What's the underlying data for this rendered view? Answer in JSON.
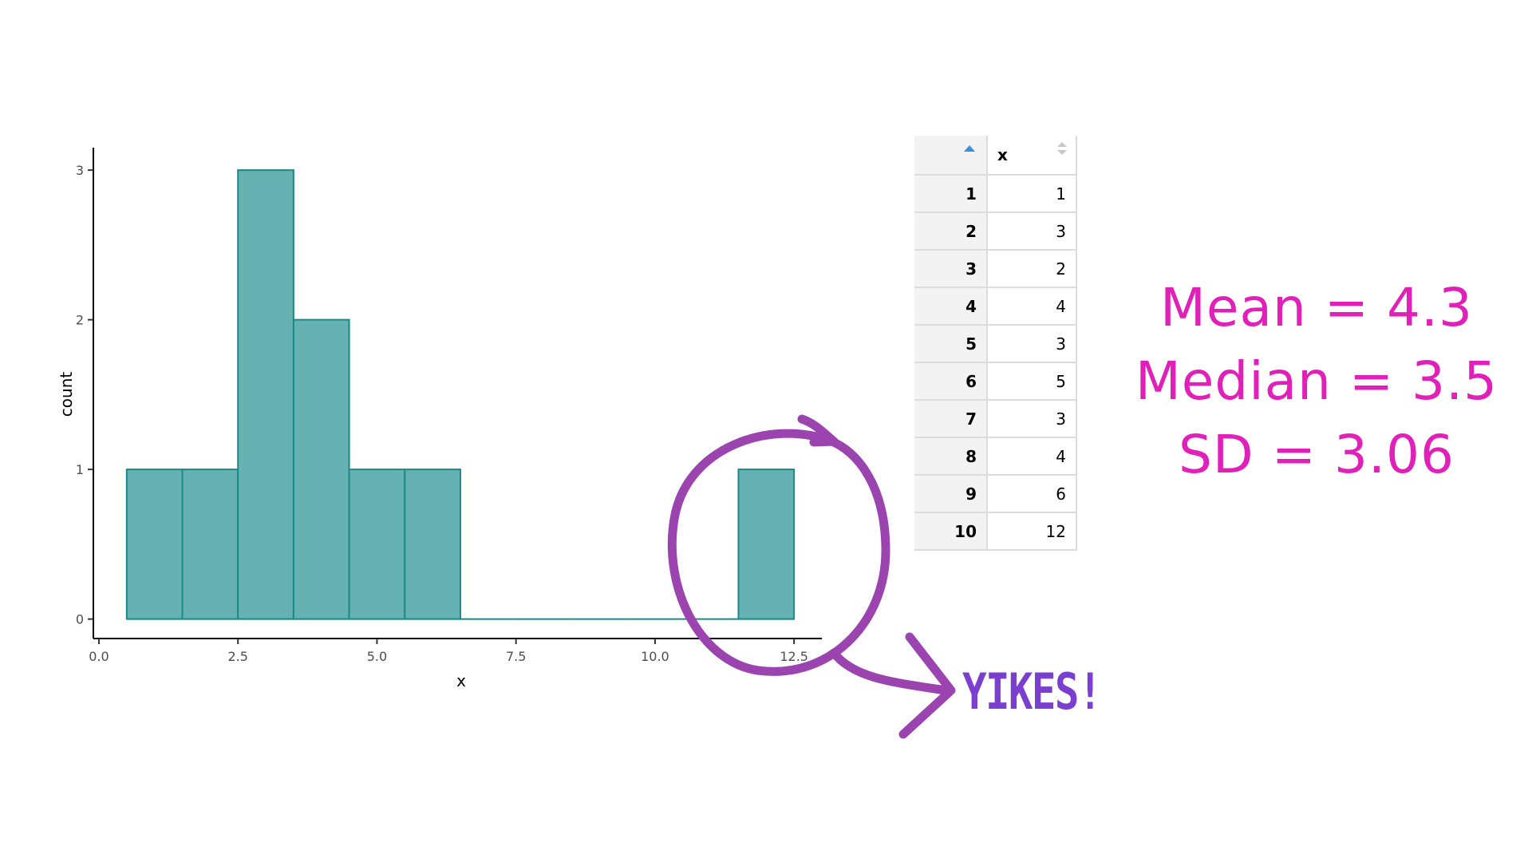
{
  "chart_data": {
    "type": "bar",
    "xlabel": "x",
    "ylabel": "count",
    "xlim": [
      -0.1,
      13.0
    ],
    "ylim": [
      -0.13,
      3.15
    ],
    "x_ticks": [
      0.0,
      2.5,
      5.0,
      7.5,
      10.0,
      12.5
    ],
    "x_tick_labels": [
      "0.0",
      "2.5",
      "5.0",
      "7.5",
      "10.0",
      "12.5"
    ],
    "y_ticks": [
      0,
      1,
      2,
      3
    ],
    "y_tick_labels": [
      "0",
      "1",
      "2",
      "3"
    ],
    "bins": [
      {
        "x0": 0.5,
        "x1": 1.5,
        "count": 1
      },
      {
        "x0": 1.5,
        "x1": 2.5,
        "count": 1
      },
      {
        "x0": 2.5,
        "x1": 3.5,
        "count": 3
      },
      {
        "x0": 3.5,
        "x1": 4.5,
        "count": 2
      },
      {
        "x0": 4.5,
        "x1": 5.5,
        "count": 1
      },
      {
        "x0": 5.5,
        "x1": 6.5,
        "count": 1
      },
      {
        "x0": 6.5,
        "x1": 7.5,
        "count": 0
      },
      {
        "x0": 7.5,
        "x1": 8.5,
        "count": 0
      },
      {
        "x0": 8.5,
        "x1": 9.5,
        "count": 0
      },
      {
        "x0": 9.5,
        "x1": 10.5,
        "count": 0
      },
      {
        "x0": 10.5,
        "x1": 11.5,
        "count": 0
      },
      {
        "x0": 11.5,
        "x1": 12.5,
        "count": 1
      }
    ],
    "bar_fill": "#66b2b2",
    "bar_stroke": "#1b8a86",
    "grid": false
  },
  "table": {
    "column_header": "x",
    "rows": [
      {
        "index": "1",
        "x": "1"
      },
      {
        "index": "2",
        "x": "3"
      },
      {
        "index": "3",
        "x": "2"
      },
      {
        "index": "4",
        "x": "4"
      },
      {
        "index": "5",
        "x": "3"
      },
      {
        "index": "6",
        "x": "5"
      },
      {
        "index": "7",
        "x": "3"
      },
      {
        "index": "8",
        "x": "4"
      },
      {
        "index": "9",
        "x": "6"
      },
      {
        "index": "10",
        "x": "12"
      }
    ]
  },
  "annotations": {
    "stats": [
      "Mean = 4.3",
      "Median = 3.5",
      "SD = 3.06"
    ],
    "callout": "YIKES!",
    "stats_color": "#e020b8",
    "callout_color": "#7b3fd0",
    "circle_color": "#9b44b0"
  }
}
